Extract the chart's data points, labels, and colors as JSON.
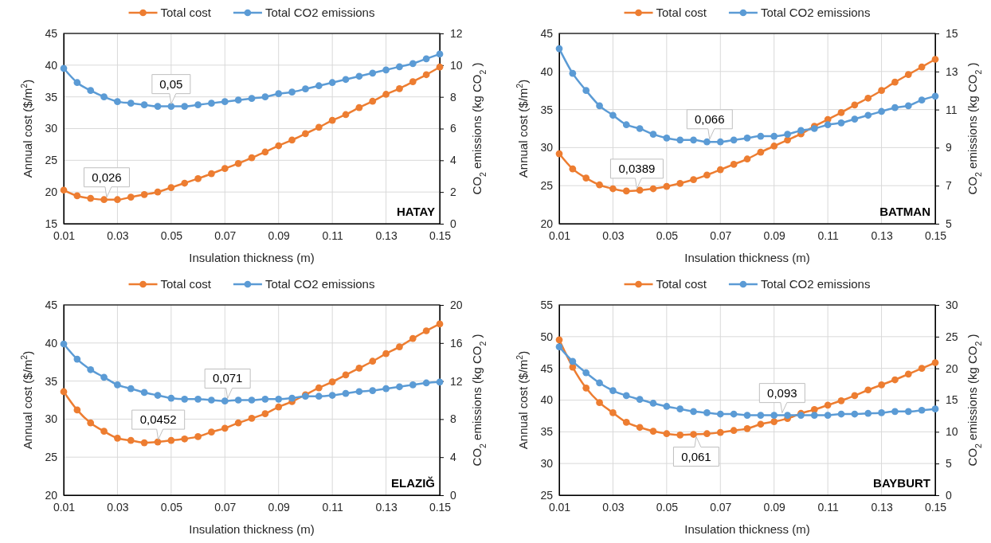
{
  "chart_data": [
    {
      "type": "line",
      "title": "HATAY",
      "xlabel": "Insulation thickness (m)",
      "ylabel": "Annual cost ($/m$^{2}$)",
      "y2label": "CO$_{2}$ emissions (kg CO$_{2}$ )",
      "x": [
        0.01,
        0.015,
        0.02,
        0.025,
        0.03,
        0.035,
        0.04,
        0.045,
        0.05,
        0.055,
        0.06,
        0.065,
        0.07,
        0.075,
        0.08,
        0.085,
        0.09,
        0.095,
        0.1,
        0.105,
        0.11,
        0.115,
        0.12,
        0.125,
        0.13,
        0.135,
        0.14,
        0.145,
        0.15
      ],
      "xlim": [
        0.01,
        0.15
      ],
      "xticks": [
        0.01,
        0.03,
        0.05,
        0.07,
        0.09,
        0.11,
        0.13,
        0.15
      ],
      "ylim": [
        15,
        45
      ],
      "yticks": [
        15,
        20,
        25,
        30,
        35,
        40,
        45
      ],
      "y2lim": [
        0,
        12
      ],
      "y2ticks": [
        0,
        2,
        4,
        6,
        8,
        10,
        12
      ],
      "grid": true,
      "legend": "top",
      "marker": "circle",
      "series": [
        {
          "name": "Total cost",
          "color": "#ed7d31",
          "values": [
            20.3,
            19.4,
            19.0,
            18.8,
            18.8,
            19.2,
            19.6,
            20.0,
            20.7,
            21.4,
            22.1,
            22.9,
            23.7,
            24.5,
            25.4,
            26.3,
            27.3,
            28.2,
            29.2,
            30.2,
            31.3,
            32.2,
            33.3,
            34.3,
            35.4,
            36.3,
            37.4,
            38.5,
            39.7
          ]
        },
        {
          "name": "Total CO2 emissions",
          "color": "#5b9bd5",
          "axis": "y2",
          "values": [
            9.8,
            8.9,
            8.4,
            8.0,
            7.7,
            7.6,
            7.5,
            7.4,
            7.4,
            7.4,
            7.5,
            7.6,
            7.7,
            7.8,
            7.9,
            8.0,
            8.2,
            8.3,
            8.5,
            8.7,
            8.9,
            9.1,
            9.3,
            9.5,
            9.7,
            9.9,
            10.1,
            10.4,
            10.7
          ]
        }
      ],
      "annotations": [
        {
          "text": "0,05",
          "x": 0.05,
          "y": 33.5
        },
        {
          "text": "0,026",
          "x": 0.026,
          "y": 18.8
        }
      ]
    },
    {
      "type": "line",
      "title": "BATMAN",
      "xlabel": "Insulation thickness (m)",
      "ylabel": "Annual cost ($/m$^{2}$)",
      "y2label": "CO$_{2}$ emissions (kg CO$_{2}$ )",
      "x": [
        0.01,
        0.015,
        0.02,
        0.025,
        0.03,
        0.035,
        0.04,
        0.045,
        0.05,
        0.055,
        0.06,
        0.065,
        0.07,
        0.075,
        0.08,
        0.085,
        0.09,
        0.095,
        0.1,
        0.105,
        0.11,
        0.115,
        0.12,
        0.125,
        0.13,
        0.135,
        0.14,
        0.145,
        0.15
      ],
      "xlim": [
        0.01,
        0.15
      ],
      "xticks": [
        0.01,
        0.03,
        0.05,
        0.07,
        0.09,
        0.11,
        0.13,
        0.15
      ],
      "ylim": [
        20,
        45
      ],
      "yticks": [
        20,
        25,
        30,
        35,
        40,
        45
      ],
      "y2lim": [
        5,
        15
      ],
      "y2ticks": [
        5,
        7,
        9,
        11,
        13,
        15
      ],
      "grid": true,
      "legend": "top",
      "marker": "circle",
      "series": [
        {
          "name": "Total cost",
          "color": "#ed7d31",
          "values": [
            29.2,
            27.2,
            26.0,
            25.1,
            24.6,
            24.3,
            24.4,
            24.6,
            24.9,
            25.3,
            25.8,
            26.4,
            27.1,
            27.8,
            28.5,
            29.4,
            30.2,
            31.0,
            31.8,
            32.8,
            33.7,
            34.6,
            35.6,
            36.5,
            37.5,
            38.6,
            39.6,
            40.6,
            41.6
          ]
        },
        {
          "name": "Total CO2 emissions",
          "color": "#5b9bd5",
          "axis": "y2",
          "values": [
            14.2,
            12.9,
            12.0,
            11.2,
            10.7,
            10.2,
            10.0,
            9.7,
            9.5,
            9.4,
            9.4,
            9.3,
            9.3,
            9.4,
            9.5,
            9.6,
            9.6,
            9.7,
            9.9,
            10.0,
            10.2,
            10.3,
            10.5,
            10.7,
            10.9,
            11.1,
            11.2,
            11.5,
            11.7
          ]
        }
      ],
      "annotations": [
        {
          "text": "0,066",
          "x": 0.066,
          "y": 30.8
        },
        {
          "text": "0,0389",
          "x": 0.0389,
          "y": 24.3
        }
      ]
    },
    {
      "type": "line",
      "title": "ELAZIĞ",
      "xlabel": "Insulation thickness (m)",
      "ylabel": "Annual cost ($/m$^{2}$)",
      "y2label": "CO$_{2}$ emissions (kg CO$_{2}$ )",
      "x": [
        0.01,
        0.015,
        0.02,
        0.025,
        0.03,
        0.035,
        0.04,
        0.045,
        0.05,
        0.055,
        0.06,
        0.065,
        0.07,
        0.075,
        0.08,
        0.085,
        0.09,
        0.095,
        0.1,
        0.105,
        0.11,
        0.115,
        0.12,
        0.125,
        0.13,
        0.135,
        0.14,
        0.145,
        0.15
      ],
      "xlim": [
        0.01,
        0.15
      ],
      "xticks": [
        0.01,
        0.03,
        0.05,
        0.07,
        0.09,
        0.11,
        0.13,
        0.15
      ],
      "ylim": [
        20,
        45
      ],
      "yticks": [
        20,
        25,
        30,
        35,
        40,
        45
      ],
      "y2lim": [
        0,
        20
      ],
      "y2ticks": [
        0,
        4,
        8,
        12,
        16,
        20
      ],
      "grid": true,
      "legend": "top",
      "marker": "circle",
      "series": [
        {
          "name": "Total cost",
          "color": "#ed7d31",
          "values": [
            33.6,
            31.2,
            29.5,
            28.4,
            27.5,
            27.2,
            26.9,
            27.0,
            27.2,
            27.4,
            27.7,
            28.3,
            28.8,
            29.5,
            30.1,
            30.7,
            31.6,
            32.3,
            33.2,
            34.1,
            34.9,
            35.8,
            36.7,
            37.6,
            38.6,
            39.5,
            40.6,
            41.6,
            42.5
          ]
        },
        {
          "name": "Total CO2 emissions",
          "color": "#5b9bd5",
          "axis": "y2",
          "values": [
            15.9,
            14.3,
            13.2,
            12.4,
            11.6,
            11.2,
            10.8,
            10.5,
            10.2,
            10.1,
            10.1,
            10.0,
            9.9,
            10.0,
            10.0,
            10.1,
            10.1,
            10.2,
            10.4,
            10.4,
            10.5,
            10.7,
            10.9,
            11.0,
            11.2,
            11.4,
            11.6,
            11.8,
            11.9
          ]
        }
      ],
      "annotations": [
        {
          "text": "0,071",
          "x": 0.071,
          "y": 32.4
        },
        {
          "text": "0,0452",
          "x": 0.0452,
          "y": 27.0
        }
      ]
    },
    {
      "type": "line",
      "title": "BAYBURT",
      "xlabel": "Insulation thickness (m)",
      "ylabel": "Annual cost ($/m$^{2}$)",
      "y2label": "CO$_{2}$ emissions (kg CO$_{2}$ )",
      "x": [
        0.01,
        0.015,
        0.02,
        0.025,
        0.03,
        0.035,
        0.04,
        0.045,
        0.05,
        0.055,
        0.06,
        0.065,
        0.07,
        0.075,
        0.08,
        0.085,
        0.09,
        0.095,
        0.1,
        0.105,
        0.11,
        0.115,
        0.12,
        0.125,
        0.13,
        0.135,
        0.14,
        0.145,
        0.15
      ],
      "xlim": [
        0.01,
        0.15
      ],
      "xticks": [
        0.01,
        0.03,
        0.05,
        0.07,
        0.09,
        0.11,
        0.13,
        0.15
      ],
      "ylim": [
        25,
        55
      ],
      "yticks": [
        25,
        30,
        35,
        40,
        45,
        50,
        55
      ],
      "y2lim": [
        0,
        30
      ],
      "y2ticks": [
        0,
        5,
        10,
        15,
        20,
        25,
        30
      ],
      "grid": true,
      "legend": "top",
      "marker": "circle",
      "series": [
        {
          "name": "Total cost",
          "color": "#ed7d31",
          "values": [
            49.5,
            45.2,
            41.9,
            39.6,
            38.0,
            36.5,
            35.7,
            35.1,
            34.7,
            34.5,
            34.6,
            34.7,
            34.9,
            35.2,
            35.5,
            36.2,
            36.6,
            37.1,
            37.9,
            38.5,
            39.2,
            39.9,
            40.7,
            41.6,
            42.4,
            43.2,
            44.1,
            45.0,
            45.9
          ]
        },
        {
          "name": "Total CO2 emissions",
          "color": "#5b9bd5",
          "axis": "y2",
          "values": [
            23.4,
            21.1,
            19.3,
            17.7,
            16.5,
            15.7,
            15.1,
            14.5,
            14.0,
            13.6,
            13.2,
            13.0,
            12.8,
            12.8,
            12.6,
            12.6,
            12.6,
            12.6,
            12.6,
            12.6,
            12.6,
            12.8,
            12.8,
            12.9,
            13.0,
            13.2,
            13.2,
            13.4,
            13.6
          ]
        }
      ],
      "annotations": [
        {
          "text": "0,093",
          "x": 0.093,
          "y": 37.6
        },
        {
          "text": "0,061",
          "x": 0.061,
          "y": 34.6
        }
      ]
    }
  ]
}
